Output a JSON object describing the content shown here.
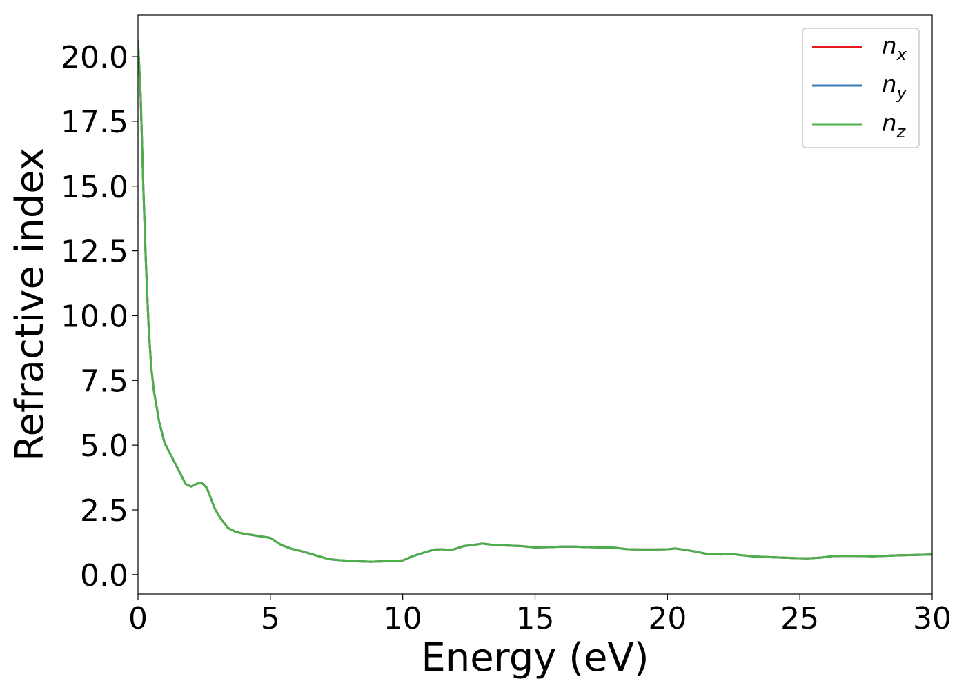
{
  "chart_data": {
    "type": "line",
    "xlabel": "Energy (eV)",
    "ylabel": "Refractive index",
    "xlim": [
      0,
      30
    ],
    "ylim": [
      -0.75,
      21.6
    ],
    "xticks": [
      0,
      5,
      10,
      15,
      20,
      25,
      30
    ],
    "xtick_labels": [
      "0",
      "5",
      "10",
      "15",
      "20",
      "25",
      "30"
    ],
    "yticks": [
      0,
      2.5,
      5,
      7.5,
      10,
      12.5,
      15,
      17.5,
      20
    ],
    "ytick_labels": [
      "0.0",
      "2.5",
      "5.0",
      "7.5",
      "10.0",
      "12.5",
      "15.0",
      "17.5",
      "20.0"
    ],
    "grid": false,
    "legend_position": "top-right",
    "series": [
      {
        "name": "n_x",
        "base": "n",
        "sub": "x",
        "color": "#e41a1c",
        "x": [
          0,
          0.1,
          0.2,
          0.3,
          0.4,
          0.5,
          0.6,
          0.8,
          1.0,
          1.2,
          1.4,
          1.6,
          1.8,
          2.0,
          2.2,
          2.4,
          2.6,
          2.75,
          2.9,
          3.1,
          3.4,
          3.7,
          4.0,
          4.5,
          5.0,
          5.4,
          5.8,
          6.2,
          6.7,
          7.2,
          7.6,
          8.2,
          8.8,
          9.4,
          10.0,
          10.4,
          10.8,
          11.2,
          11.5,
          11.8,
          12.0,
          12.3,
          12.7,
          13.0,
          13.4,
          14.0,
          14.5,
          15.0,
          15.5,
          16.0,
          16.5,
          17.0,
          17.5,
          18.0,
          18.5,
          19.0,
          19.5,
          20.0,
          20.3,
          20.6,
          21.0,
          21.5,
          22.0,
          22.4,
          22.8,
          23.3,
          23.8,
          24.3,
          24.8,
          25.3,
          25.8,
          26.3,
          26.8,
          27.3,
          27.8,
          28.3,
          28.8,
          29.3,
          30.0
        ],
        "y": [
          20.6,
          18.5,
          15.0,
          12.0,
          9.6,
          8.0,
          7.1,
          5.9,
          5.1,
          4.7,
          4.3,
          3.9,
          3.5,
          3.4,
          3.5,
          3.55,
          3.35,
          2.95,
          2.55,
          2.2,
          1.8,
          1.65,
          1.58,
          1.5,
          1.42,
          1.15,
          1.0,
          0.9,
          0.75,
          0.6,
          0.56,
          0.52,
          0.5,
          0.52,
          0.55,
          0.72,
          0.85,
          0.97,
          0.98,
          0.95,
          1.0,
          1.1,
          1.15,
          1.2,
          1.15,
          1.12,
          1.1,
          1.05,
          1.06,
          1.08,
          1.08,
          1.06,
          1.05,
          1.04,
          0.98,
          0.97,
          0.97,
          0.98,
          1.01,
          0.97,
          0.9,
          0.8,
          0.78,
          0.8,
          0.75,
          0.7,
          0.68,
          0.66,
          0.64,
          0.63,
          0.66,
          0.72,
          0.73,
          0.72,
          0.71,
          0.73,
          0.75,
          0.76,
          0.78
        ]
      },
      {
        "name": "n_y",
        "base": "n",
        "sub": "y",
        "color": "#377eb8",
        "x": [
          0,
          0.1,
          0.2,
          0.3,
          0.4,
          0.5,
          0.6,
          0.8,
          1.0,
          1.2,
          1.4,
          1.6,
          1.8,
          2.0,
          2.2,
          2.4,
          2.6,
          2.75,
          2.9,
          3.1,
          3.4,
          3.7,
          4.0,
          4.5,
          5.0,
          5.4,
          5.8,
          6.2,
          6.7,
          7.2,
          7.6,
          8.2,
          8.8,
          9.4,
          10.0,
          10.4,
          10.8,
          11.2,
          11.5,
          11.8,
          12.0,
          12.3,
          12.7,
          13.0,
          13.4,
          14.0,
          14.5,
          15.0,
          15.5,
          16.0,
          16.5,
          17.0,
          17.5,
          18.0,
          18.5,
          19.0,
          19.5,
          20.0,
          20.3,
          20.6,
          21.0,
          21.5,
          22.0,
          22.4,
          22.8,
          23.3,
          23.8,
          24.3,
          24.8,
          25.3,
          25.8,
          26.3,
          26.8,
          27.3,
          27.8,
          28.3,
          28.8,
          29.3,
          30.0
        ],
        "y": [
          20.6,
          18.5,
          15.0,
          12.0,
          9.6,
          8.0,
          7.1,
          5.9,
          5.1,
          4.7,
          4.3,
          3.9,
          3.5,
          3.4,
          3.5,
          3.55,
          3.35,
          2.95,
          2.55,
          2.2,
          1.8,
          1.65,
          1.58,
          1.5,
          1.42,
          1.15,
          1.0,
          0.9,
          0.75,
          0.6,
          0.56,
          0.52,
          0.5,
          0.52,
          0.55,
          0.72,
          0.85,
          0.97,
          0.98,
          0.95,
          1.0,
          1.1,
          1.15,
          1.2,
          1.15,
          1.12,
          1.1,
          1.05,
          1.06,
          1.08,
          1.08,
          1.06,
          1.05,
          1.04,
          0.98,
          0.97,
          0.97,
          0.98,
          1.01,
          0.97,
          0.9,
          0.8,
          0.78,
          0.8,
          0.75,
          0.7,
          0.68,
          0.66,
          0.64,
          0.63,
          0.66,
          0.72,
          0.73,
          0.72,
          0.71,
          0.73,
          0.75,
          0.76,
          0.78
        ]
      },
      {
        "name": "n_z",
        "base": "n",
        "sub": "z",
        "color": "#4daf4a",
        "x": [
          0,
          0.1,
          0.2,
          0.3,
          0.4,
          0.5,
          0.6,
          0.8,
          1.0,
          1.2,
          1.4,
          1.6,
          1.8,
          2.0,
          2.2,
          2.4,
          2.6,
          2.75,
          2.9,
          3.1,
          3.4,
          3.7,
          4.0,
          4.5,
          5.0,
          5.4,
          5.8,
          6.2,
          6.7,
          7.2,
          7.6,
          8.2,
          8.8,
          9.4,
          10.0,
          10.4,
          10.8,
          11.2,
          11.5,
          11.8,
          12.0,
          12.3,
          12.7,
          13.0,
          13.4,
          14.0,
          14.5,
          15.0,
          15.5,
          16.0,
          16.5,
          17.0,
          17.5,
          18.0,
          18.5,
          19.0,
          19.5,
          20.0,
          20.3,
          20.6,
          21.0,
          21.5,
          22.0,
          22.4,
          22.8,
          23.3,
          23.8,
          24.3,
          24.8,
          25.3,
          25.8,
          26.3,
          26.8,
          27.3,
          27.8,
          28.3,
          28.8,
          29.3,
          30.0
        ],
        "y": [
          20.6,
          18.5,
          15.0,
          12.0,
          9.6,
          8.0,
          7.1,
          5.9,
          5.1,
          4.7,
          4.3,
          3.9,
          3.5,
          3.4,
          3.5,
          3.55,
          3.35,
          2.95,
          2.55,
          2.2,
          1.8,
          1.65,
          1.58,
          1.5,
          1.42,
          1.15,
          1.0,
          0.9,
          0.75,
          0.6,
          0.56,
          0.52,
          0.5,
          0.52,
          0.55,
          0.72,
          0.85,
          0.97,
          0.98,
          0.95,
          1.0,
          1.1,
          1.15,
          1.2,
          1.15,
          1.12,
          1.1,
          1.05,
          1.06,
          1.08,
          1.08,
          1.06,
          1.05,
          1.04,
          0.98,
          0.97,
          0.97,
          0.98,
          1.01,
          0.97,
          0.9,
          0.8,
          0.78,
          0.8,
          0.75,
          0.7,
          0.68,
          0.66,
          0.64,
          0.63,
          0.66,
          0.72,
          0.73,
          0.72,
          0.71,
          0.73,
          0.75,
          0.76,
          0.78
        ]
      }
    ]
  }
}
